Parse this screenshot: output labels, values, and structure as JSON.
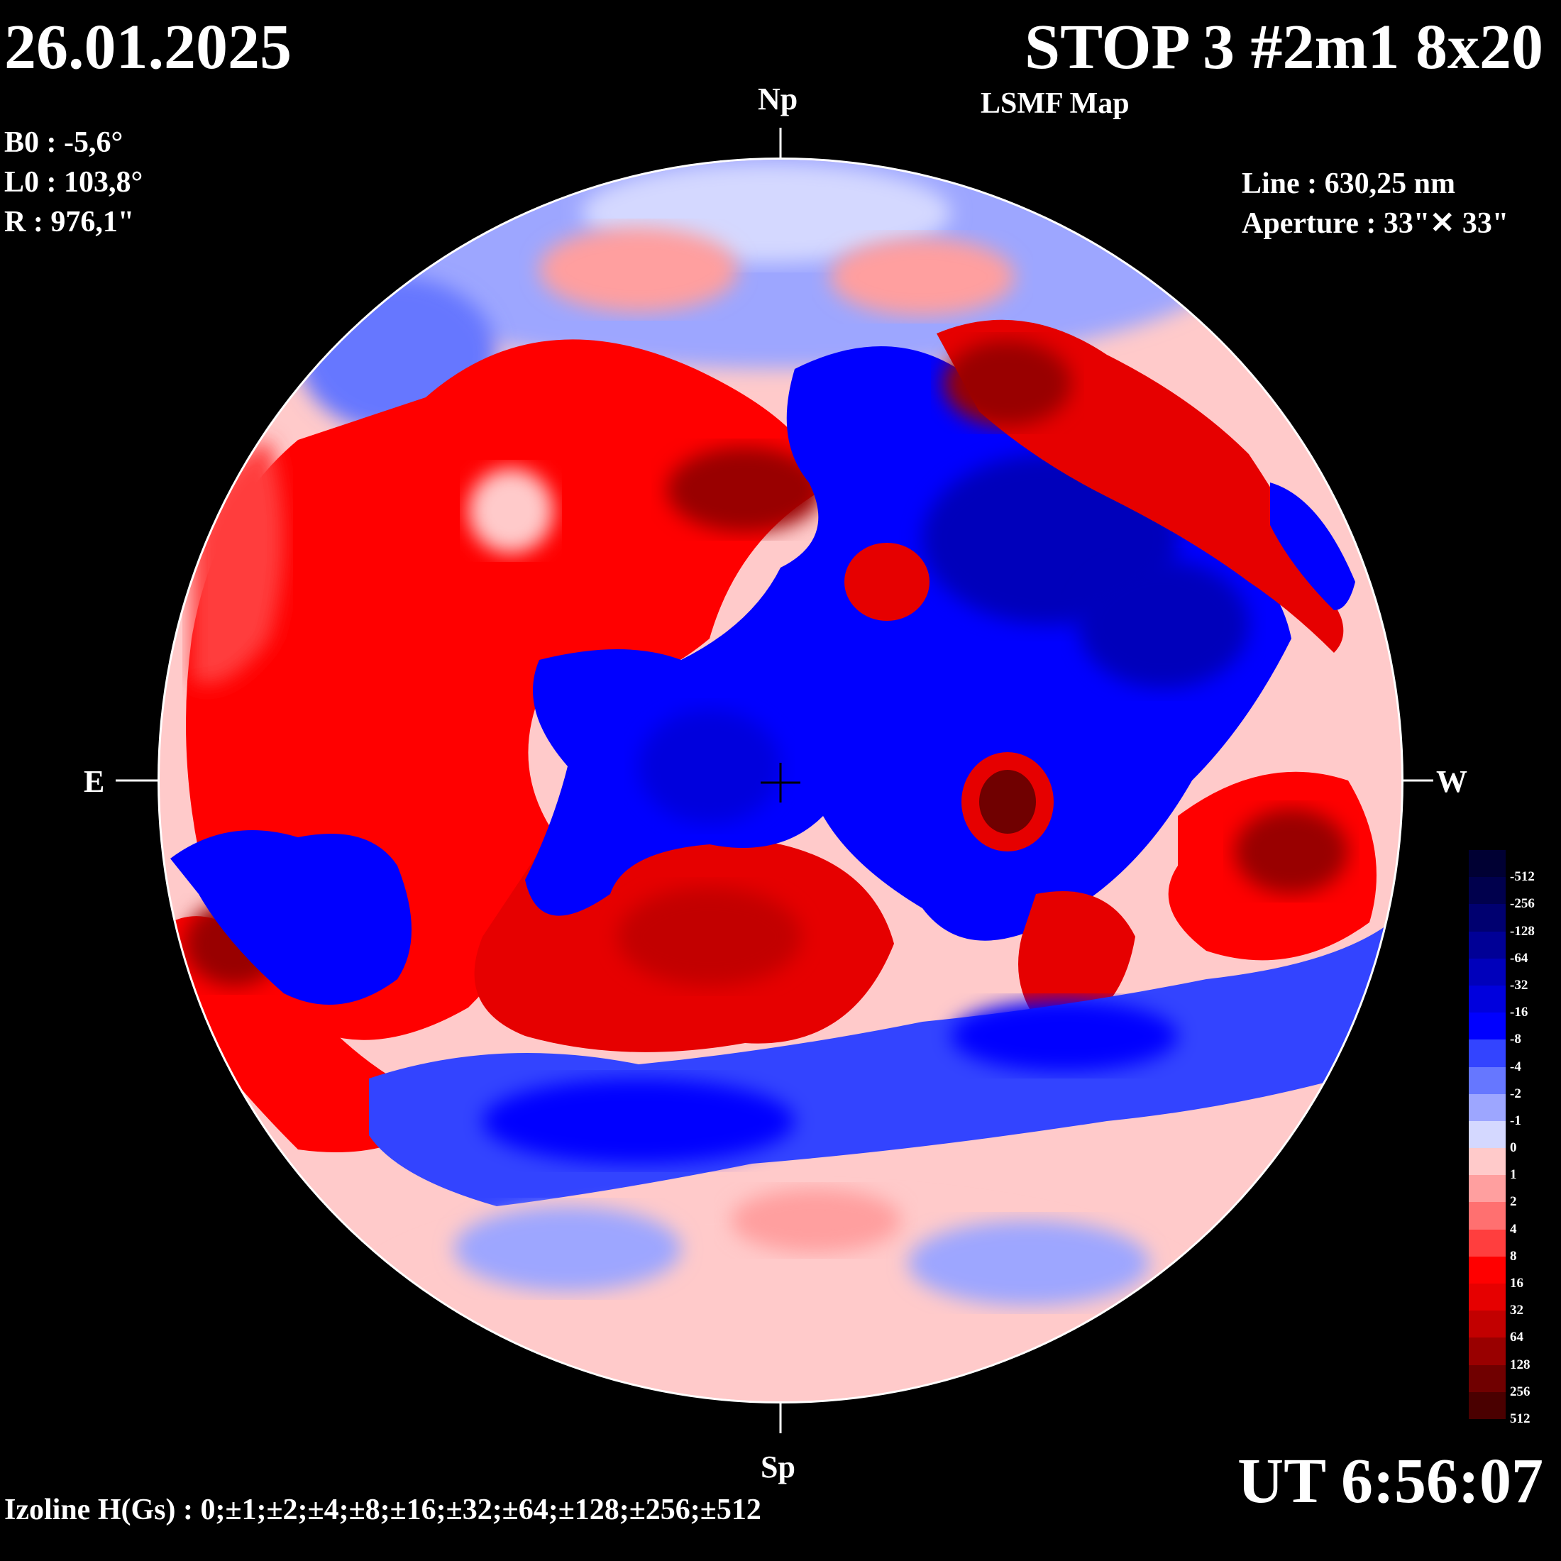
{
  "header": {
    "date": "26.01.2025",
    "title": "STOP 3 #2m1 8x20",
    "subtitle": "LSMF  Map"
  },
  "ephemeris": {
    "b0": "B0 : -5,6°",
    "l0": "L0 : 103,8°",
    "r": "R  : 976,1\""
  },
  "instrument": {
    "line": "Line :  630,25 nm",
    "aperture": "Aperture : 33\"✕ 33\""
  },
  "directions": {
    "north": "Np",
    "south": "Sp",
    "east": "E",
    "west": "W"
  },
  "time": "UT 6:56:07",
  "izoline": "Izoline H(Gs) : 0;±1;±2;±4;±8;±16;±32;±64;±128;±256;±512",
  "colors": {
    "positive": "#ff0000",
    "negative": "#0000ff",
    "zero_line": "#ffffff",
    "background": "#000000"
  },
  "legend": [
    {
      "label": "-512",
      "color": "#000033"
    },
    {
      "label": "-256",
      "color": "#00004d"
    },
    {
      "label": "-128",
      "color": "#000070"
    },
    {
      "label": "-64",
      "color": "#000096"
    },
    {
      "label": "-32",
      "color": "#0000bb"
    },
    {
      "label": "-16",
      "color": "#0000dd"
    },
    {
      "label": "-8",
      "color": "#0000ff"
    },
    {
      "label": "-4",
      "color": "#3344ff"
    },
    {
      "label": "-2",
      "color": "#6677ff"
    },
    {
      "label": "-1",
      "color": "#9da6ff"
    },
    {
      "label": "0",
      "color": "#d4d8ff"
    },
    {
      "label": "1",
      "color": "#ffcaca"
    },
    {
      "label": "2",
      "color": "#ff9f9f"
    },
    {
      "label": "4",
      "color": "#ff7070"
    },
    {
      "label": "8",
      "color": "#ff3e3e"
    },
    {
      "label": "16",
      "color": "#ff0000"
    },
    {
      "label": "32",
      "color": "#e60000"
    },
    {
      "label": "64",
      "color": "#c20000"
    },
    {
      "label": "128",
      "color": "#990000"
    },
    {
      "label": "256",
      "color": "#700000"
    },
    {
      "label": "512",
      "color": "#4a0000"
    }
  ]
}
